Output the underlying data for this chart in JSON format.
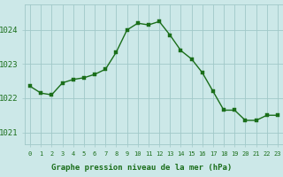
{
  "x": [
    0,
    1,
    2,
    3,
    4,
    5,
    6,
    7,
    8,
    9,
    10,
    11,
    12,
    13,
    14,
    15,
    16,
    17,
    18,
    19,
    20,
    21,
    22,
    23
  ],
  "y": [
    1022.35,
    1022.15,
    1022.1,
    1022.45,
    1022.55,
    1022.6,
    1022.7,
    1022.85,
    1023.35,
    1024.0,
    1024.2,
    1024.15,
    1024.25,
    1023.85,
    1023.4,
    1023.15,
    1022.75,
    1022.2,
    1021.65,
    1021.65,
    1021.35,
    1021.35,
    1021.5,
    1021.5
  ],
  "line_color": "#1a6e1a",
  "marker": "s",
  "marker_size": 2.5,
  "bg_color": "#cce8e8",
  "grid_color": "#a0c8c8",
  "xlabel": "Graphe pression niveau de la mer (hPa)",
  "xlabel_color": "#1a6e1a",
  "tick_color": "#1a6e1a",
  "ylabel_ticks": [
    1021,
    1022,
    1023,
    1024
  ],
  "ylim": [
    1020.65,
    1024.75
  ],
  "xlim": [
    -0.5,
    23.5
  ],
  "xtick_labels": [
    "0",
    "1",
    "2",
    "3",
    "4",
    "5",
    "6",
    "7",
    "8",
    "9",
    "10",
    "11",
    "12",
    "13",
    "14",
    "15",
    "16",
    "17",
    "18",
    "19",
    "20",
    "21",
    "22",
    "23"
  ]
}
